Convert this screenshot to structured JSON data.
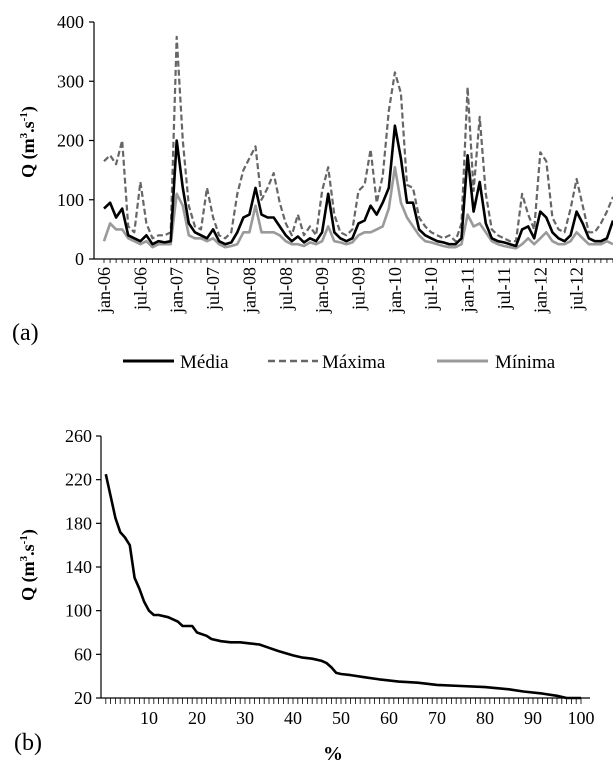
{
  "chart_data": [
    {
      "type": "line",
      "panel_label": "(a)",
      "ylabel_main": "Q (m",
      "ylabel_exp1": "3",
      "ylabel_mid": ".s",
      "ylabel_exp2": "-1",
      "ylabel_close": ")",
      "ylim": [
        0,
        400
      ],
      "yticks": [
        "0",
        "100",
        "200",
        "300",
        "400"
      ],
      "x_tick_labels": [
        "jan-06",
        "jul-06",
        "jan-07",
        "jul-07",
        "jan-08",
        "jul-08",
        "jan-09",
        "jul-09",
        "jan-10",
        "jul-10",
        "jan-11",
        "jul-11",
        "jan-12",
        "jul-12"
      ],
      "x_tick_month_index": [
        0,
        6,
        12,
        18,
        24,
        30,
        36,
        42,
        48,
        54,
        60,
        66,
        72,
        78
      ],
      "legend_position": "bottom",
      "grid": false,
      "series": [
        {
          "name": "Média",
          "color": "#000000",
          "dash": "solid",
          "values": [
            85,
            95,
            70,
            85,
            40,
            35,
            30,
            40,
            25,
            30,
            28,
            30,
            200,
            120,
            60,
            45,
            40,
            35,
            50,
            30,
            25,
            28,
            45,
            70,
            75,
            120,
            75,
            70,
            70,
            55,
            40,
            30,
            38,
            28,
            35,
            30,
            45,
            110,
            45,
            35,
            30,
            35,
            60,
            65,
            90,
            75,
            95,
            120,
            225,
            170,
            95,
            95,
            50,
            40,
            35,
            30,
            28,
            25,
            25,
            35,
            175,
            80,
            130,
            60,
            35,
            30,
            28,
            25,
            22,
            50,
            55,
            35,
            80,
            70,
            45,
            35,
            30,
            40,
            80,
            60,
            35,
            30,
            30,
            35,
            65
          ]
        },
        {
          "name": "Máxima",
          "color": "#666666",
          "dash": "dashed",
          "values": [
            165,
            175,
            160,
            200,
            55,
            45,
            130,
            60,
            35,
            40,
            40,
            45,
            375,
            200,
            90,
            55,
            50,
            120,
            70,
            40,
            35,
            45,
            110,
            150,
            170,
            190,
            100,
            120,
            145,
            95,
            60,
            40,
            75,
            40,
            55,
            40,
            115,
            155,
            75,
            45,
            40,
            50,
            115,
            125,
            185,
            95,
            140,
            250,
            315,
            280,
            125,
            120,
            70,
            55,
            45,
            40,
            35,
            40,
            30,
            60,
            290,
            115,
            240,
            110,
            50,
            40,
            35,
            30,
            30,
            110,
            75,
            50,
            180,
            165,
            70,
            50,
            45,
            85,
            135,
            90,
            45,
            45,
            60,
            80,
            105
          ]
        },
        {
          "name": "Mínima",
          "color": "#9a9a9a",
          "dash": "solid",
          "values": [
            30,
            60,
            50,
            50,
            35,
            30,
            25,
            30,
            20,
            25,
            25,
            25,
            110,
            90,
            40,
            35,
            35,
            30,
            35,
            25,
            20,
            22,
            25,
            45,
            45,
            90,
            45,
            45,
            45,
            40,
            30,
            25,
            25,
            22,
            28,
            25,
            30,
            55,
            30,
            28,
            25,
            28,
            40,
            45,
            45,
            50,
            55,
            85,
            155,
            95,
            70,
            55,
            40,
            30,
            28,
            25,
            22,
            20,
            20,
            25,
            75,
            55,
            60,
            45,
            30,
            25,
            22,
            20,
            18,
            25,
            35,
            25,
            35,
            45,
            30,
            25,
            25,
            30,
            45,
            35,
            25,
            25,
            25,
            30,
            25
          ]
        }
      ]
    },
    {
      "type": "line",
      "panel_label": "(b)",
      "ylabel_main": "Q (m",
      "ylabel_exp1": "3",
      "ylabel_mid": ".s",
      "ylabel_exp2": "-1",
      "ylabel_close": ")",
      "xlabel": "%",
      "ylim": [
        20,
        260
      ],
      "yticks": [
        "20",
        "60",
        "100",
        "140",
        "180",
        "220",
        "260"
      ],
      "xlim": [
        0,
        100
      ],
      "xticks": [
        "10",
        "20",
        "30",
        "40",
        "50",
        "60",
        "70",
        "80",
        "90",
        "100"
      ],
      "grid": false,
      "series": [
        {
          "color": "#000000",
          "x": [
            1,
            2,
            3,
            4,
            5,
            6,
            7,
            8,
            9,
            10,
            11,
            12,
            14,
            16,
            17,
            19,
            20,
            22,
            23,
            25,
            27,
            29,
            31,
            33,
            35,
            37,
            40,
            42,
            44,
            46,
            47,
            48,
            49,
            50,
            52,
            55,
            58,
            62,
            66,
            70,
            75,
            80,
            85,
            88,
            92,
            95,
            97,
            100
          ],
          "y": [
            225,
            205,
            185,
            172,
            167,
            160,
            130,
            120,
            108,
            100,
            96,
            96,
            94,
            90,
            86,
            86,
            80,
            77,
            74,
            72,
            71,
            71,
            70,
            69,
            66,
            63,
            59,
            57,
            56,
            54,
            52,
            48,
            43,
            42,
            41,
            39,
            37,
            35,
            34,
            32,
            31,
            30,
            28,
            26,
            24,
            22,
            20,
            20
          ]
        }
      ]
    }
  ],
  "legend_labels": [
    "Média",
    "Máxima",
    "Mínima"
  ]
}
